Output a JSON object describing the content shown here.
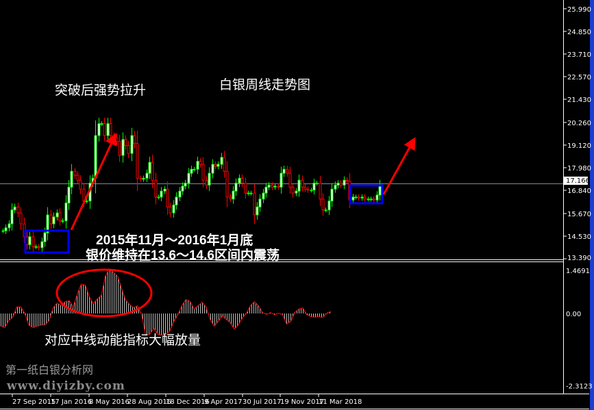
{
  "chart_data": [
    {
      "type": "candlestick",
      "title": "白银周线走势图",
      "price_axis_ticks": [
        "25.990",
        "24.850",
        "23.710",
        "22.570",
        "21.430",
        "20.260",
        "19.120",
        "17.980",
        "16.840",
        "15.670",
        "14.530",
        "13.390"
      ],
      "current_price": "17.166",
      "x_tick_labels": [
        "27 Sep 2015",
        "17 Jan 2016",
        "8 May 2016",
        "28 Aug 2016",
        "18 Dec 2016",
        "9 Apr 2017",
        "30 Jul 2017",
        "19 Nov 2017",
        "11 Mar 2018"
      ],
      "ylim": [
        13.39,
        25.99
      ],
      "close": [
        14.8,
        14.95,
        15.15,
        15.85,
        16.0,
        15.7,
        15.15,
        14.5,
        14.1,
        14.5,
        14.0,
        14.0,
        13.95,
        14.25,
        14.7,
        15.6,
        15.15,
        15.5,
        15.7,
        15.3,
        15.3,
        16.2,
        17.0,
        17.8,
        17.6,
        17.35,
        16.9,
        16.3,
        16.3,
        17.2,
        17.45,
        19.6,
        20.2,
        20.2,
        19.6,
        20.2,
        19.6,
        19.5,
        19.3,
        18.6,
        19.4,
        19.1,
        18.7,
        19.6,
        19.2,
        17.45,
        17.4,
        17.45,
        17.7,
        18.25,
        17.35,
        16.5,
        16.5,
        16.8,
        16.9,
        16.0,
        15.7,
        16.1,
        16.5,
        16.8,
        17.05,
        17.2,
        17.7,
        17.9,
        17.9,
        18.3,
        18.15,
        17.35,
        17.1,
        17.7,
        18.15,
        18.05,
        18.15,
        18.5,
        17.8,
        16.5,
        16.4,
        16.8,
        17.2,
        17.45,
        17.2,
        16.7,
        16.7,
        16.7,
        15.6,
        16.0,
        16.4,
        16.7,
        17.0,
        17.1,
        17.0,
        17.05,
        17.0,
        17.7,
        17.9,
        17.7,
        17.0,
        16.7,
        16.8,
        17.35,
        17.0,
        16.9,
        16.85,
        16.85,
        17.2,
        17.2,
        16.4,
        15.85,
        15.85,
        16.3,
        16.9,
        17.1,
        17.2,
        17.1,
        17.35,
        17.3,
        16.35,
        16.5,
        16.5,
        16.45,
        16.5,
        16.4,
        16.4,
        16.4,
        16.35,
        16.6,
        17.1
      ],
      "colors": {
        "up": "#00ff00",
        "down": "#ff0000",
        "up_body": "#ffffff",
        "down_body": "#000000"
      }
    },
    {
      "type": "histogram",
      "axis_ticks": [
        "1.4691",
        "0.00",
        "-2.3123"
      ],
      "ylim": [
        -2.3123,
        1.4691
      ],
      "values": [
        -0.41,
        -0.45,
        -0.23,
        -0.12,
        0.21,
        0.21,
        0,
        -0.37,
        -0.45,
        -0.41,
        -0.37,
        -0.37,
        -0.23,
        0.18,
        0.34,
        0.26,
        0.38,
        0.41,
        0.21,
        0.61,
        0.94,
        0.91,
        0.54,
        0.31,
        0.47,
        0.58,
        1.2,
        1.43,
        1.31,
        1.2,
        0.8,
        0.43,
        0.29,
        0.18,
        0.25,
        -0.04,
        -0.7,
        -0.67,
        -0.48,
        -0.67,
        -0.7,
        -0.67,
        -0.56,
        -0.26,
        -0.04,
        0.25,
        0.45,
        0.39,
        0.14,
        0.25,
        0.36,
        0.21,
        -0.19,
        -0.41,
        -0.26,
        -0.08,
        -0.19,
        -0.3,
        -0.5,
        -0.37,
        -0.15,
        0,
        0.25,
        0.38,
        0.25,
        0.03,
        -0.03,
        0.03,
        -0.04,
        0.01,
        -0.04,
        -0.34,
        -0.26,
        0.03,
        0.14,
        0.18,
        -0.04,
        -0.1,
        -0.12,
        -0.1,
        -0.13,
        0.01,
        0.07
      ],
      "colors": {
        "bar": "#c0c0c0",
        "line": "#ff0000"
      }
    }
  ],
  "annotations": {
    "breakout": "突破后强势拉升",
    "range_line1": "2015年11月～2016年1月底",
    "range_line2": "银价维持在13.6～14.6区间内震荡",
    "momentum": "对应中线动能指标大幅放量",
    "box_color": "#0000ff",
    "arrow_color": "#ff0000"
  },
  "watermark": {
    "name": "第一纸白银分析网",
    "url": "www.diyizby.com"
  }
}
